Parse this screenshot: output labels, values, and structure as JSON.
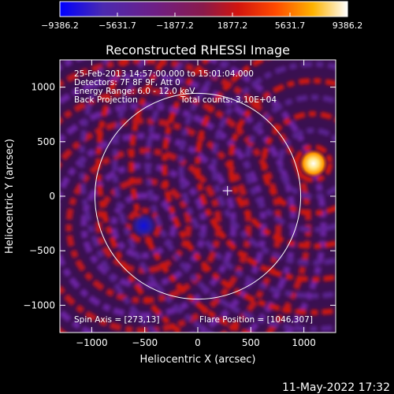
{
  "colorbar": {
    "ticks": [
      "−9386.2",
      "−5631.7",
      "−1877.2",
      "1877.2",
      "5631.7",
      "9386.2"
    ],
    "colors": [
      "#0000ff",
      "#5a1a9a",
      "#7a1e78",
      "#c0161a",
      "#ff2a00",
      "#ff8c00",
      "#ffd24a",
      "#ffffff"
    ]
  },
  "annotations": {
    "time_range": "25-Feb-2013 14:57:00.000 to 15:01:04.000",
    "detectors": "Detectors: 7F 8F 9F, Att 0",
    "energy": "Energy Range: 6.0 - 12.0 keV",
    "method": "Back Projection",
    "total_counts": "Total counts: 3.10E+04",
    "spin_axis": "Spin Axis = [273,13]",
    "flare_position": "Flare Position = [1046,307]"
  },
  "footer_timestamp": "11-May-2022 17:32",
  "chart_data": {
    "type": "heatmap",
    "title": "Reconstructed RHESSI Image",
    "xlabel": "Heliocentric X (arcsec)",
    "ylabel": "Heliocentric Y (arcsec)",
    "xlim": [
      -1300,
      1300
    ],
    "ylim": [
      -1250,
      1250
    ],
    "xticks": [
      -1000,
      -500,
      0,
      500,
      1000
    ],
    "yticks": [
      -1000,
      -500,
      0,
      500,
      1000
    ],
    "xtick_labels": [
      "−1000",
      "−500",
      "0",
      "500",
      "1000"
    ],
    "ytick_labels": [
      "−1000",
      "−500",
      "0",
      "500",
      "1000"
    ],
    "colorbar_range": [
      -9386.2,
      9386.2
    ],
    "solar_limb": {
      "center": [
        0,
        0
      ],
      "radius_arcsec": 970
    },
    "sun_center_marker": [
      280,
      50
    ],
    "features": [
      {
        "label": "negative minimum",
        "x": -510,
        "y": -270,
        "value": -9386.2
      },
      {
        "label": "positive maximum",
        "x": 1090,
        "y": 300,
        "value": 9386.2
      }
    ]
  }
}
